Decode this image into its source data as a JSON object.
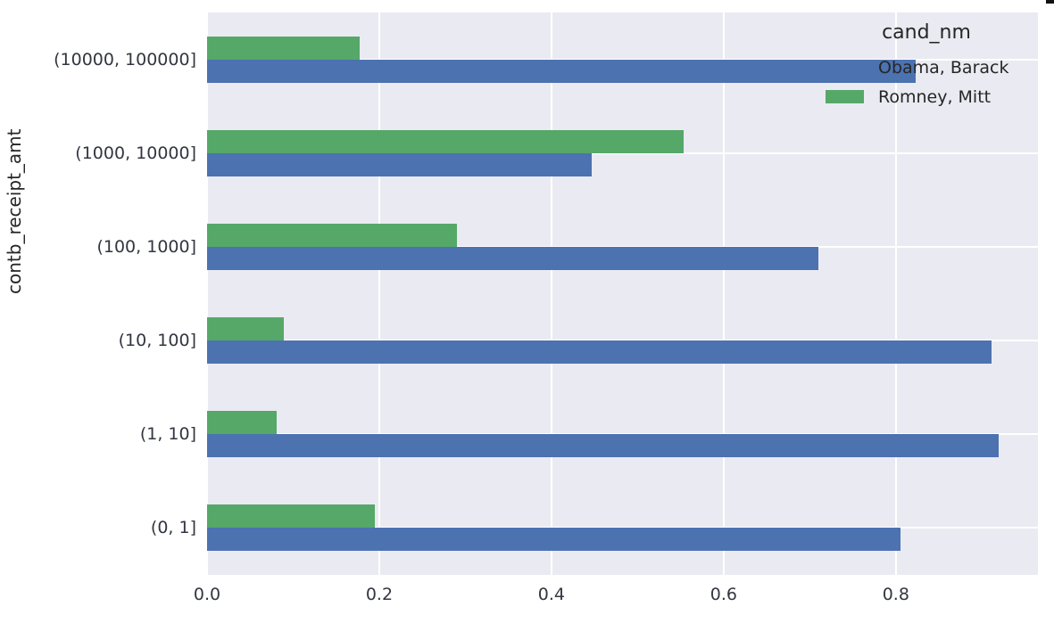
{
  "chart_data": {
    "type": "bar",
    "orientation": "horizontal",
    "title": "",
    "xlabel": "",
    "ylabel": "contb_receipt_amt",
    "categories": [
      "(10000, 100000]",
      "(1000, 10000]",
      "(100, 1000]",
      "(10, 100]",
      "(1, 10]",
      "(0, 1]"
    ],
    "categories_order": "top_to_bottom",
    "series": [
      {
        "name": "Obama, Barack",
        "color": "#4c72b0",
        "values": [
          0.823,
          0.447,
          0.71,
          0.911,
          0.919,
          0.805
        ]
      },
      {
        "name": "Romney, Mitt",
        "color": "#55a868",
        "values": [
          0.177,
          0.553,
          0.29,
          0.089,
          0.081,
          0.195
        ]
      }
    ],
    "x_ticks": [
      0.0,
      0.2,
      0.4,
      0.6,
      0.8
    ],
    "x_tick_labels": [
      "0.0",
      "0.2",
      "0.4",
      "0.6",
      "0.8"
    ],
    "xlim": [
      0,
      0.965
    ],
    "grid": true,
    "plot_background": "#eaeaf2",
    "gridline_color": "#ffffff",
    "legend_title": "cand_nm",
    "legend_position": "upper right"
  }
}
